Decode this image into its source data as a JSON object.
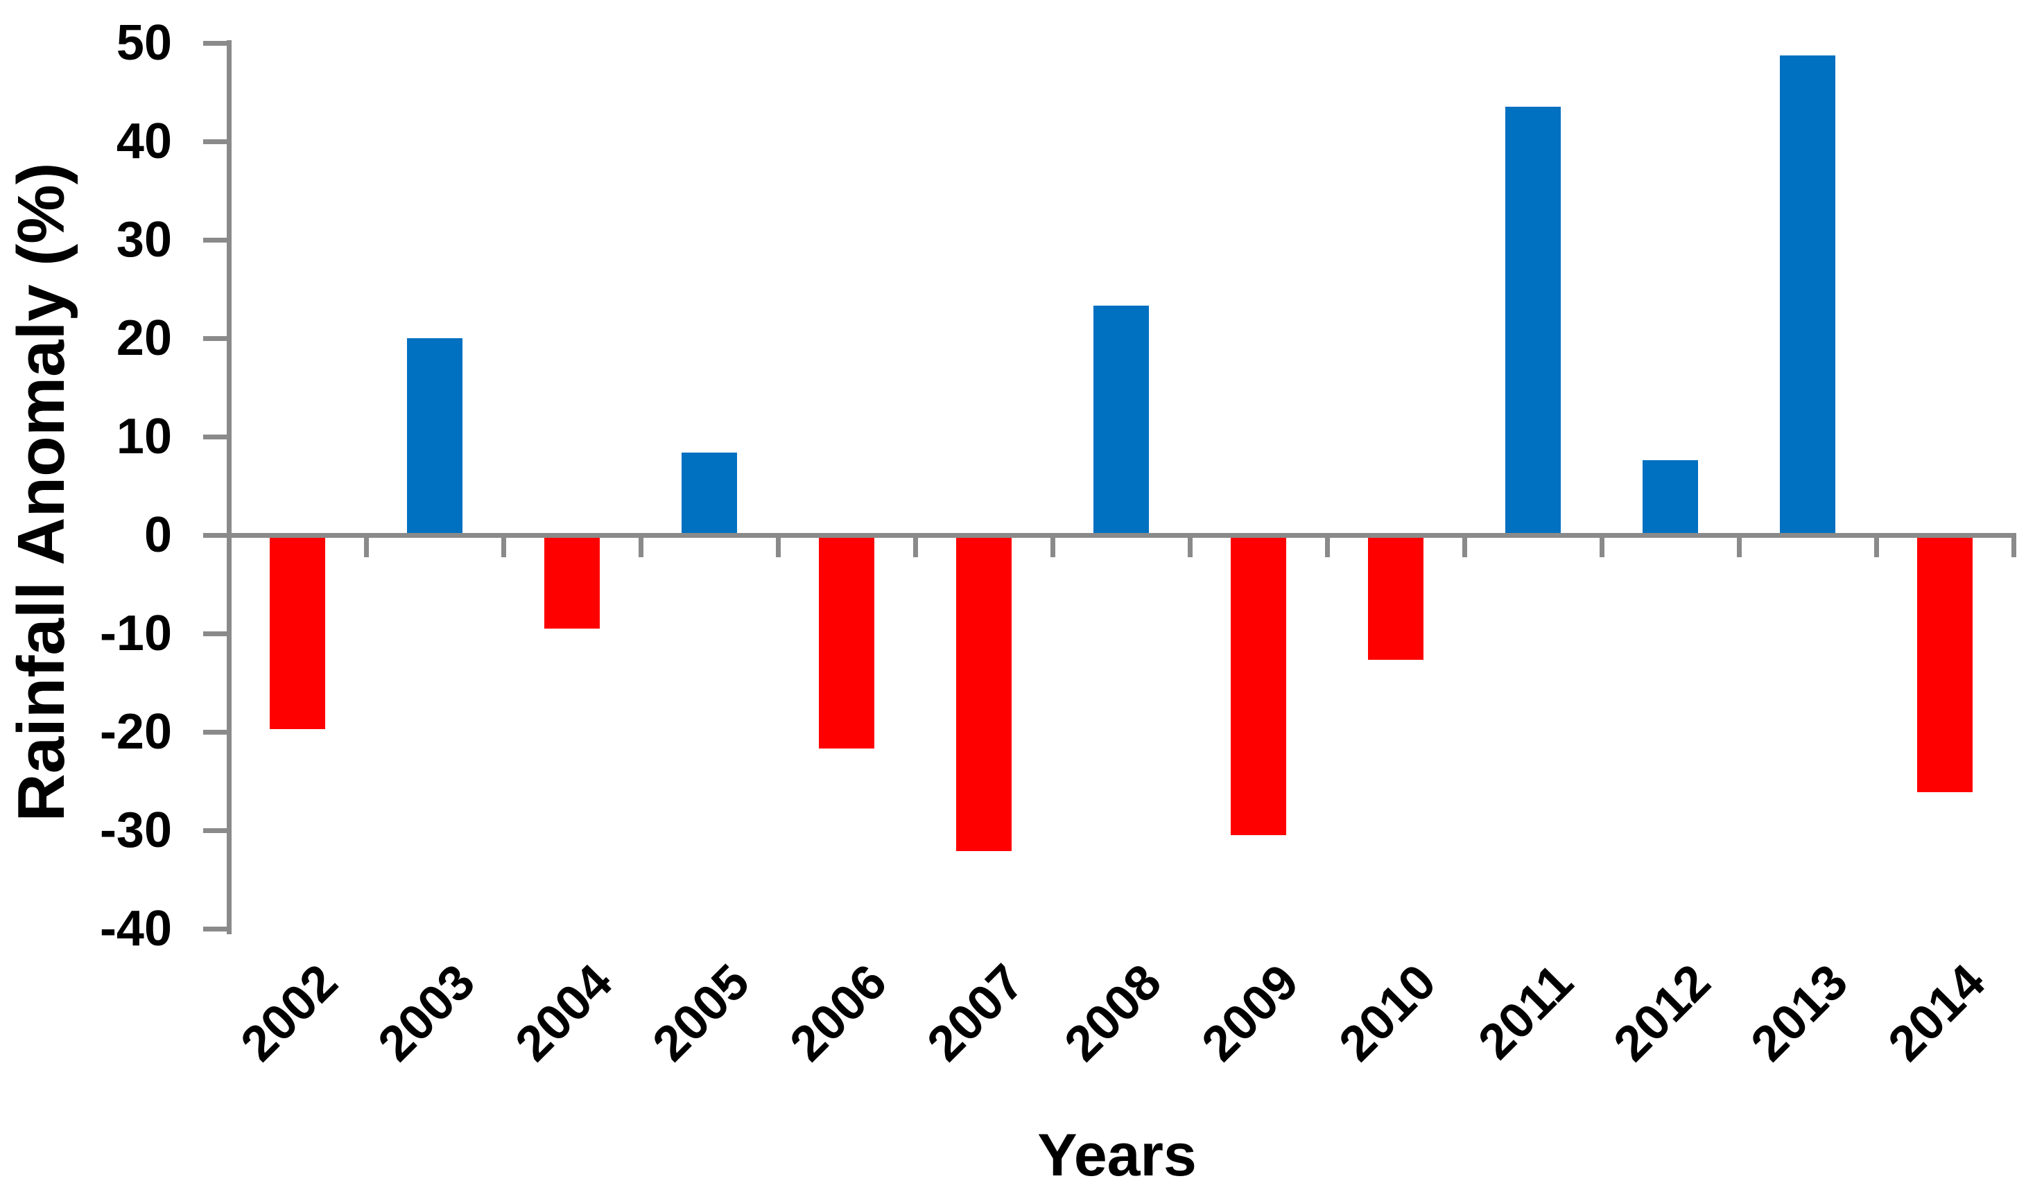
{
  "chart_data": {
    "type": "bar",
    "title": "",
    "xlabel": "Years",
    "ylabel": "Rainfall Anomaly (%)",
    "categories": [
      "2002",
      "2003",
      "2004",
      "2005",
      "2006",
      "2007",
      "2008",
      "2009",
      "2010",
      "2011",
      "2012",
      "2013",
      "2014"
    ],
    "values": [
      -19.7,
      20.0,
      -9.5,
      8.4,
      -21.7,
      -32.1,
      23.3,
      -30.5,
      -12.7,
      43.5,
      7.6,
      48.7,
      -26.1
    ],
    "yticks": [
      50,
      40,
      30,
      20,
      10,
      0,
      -10,
      -20,
      -30,
      -40
    ],
    "ylim": [
      -40,
      50
    ],
    "grid": "off",
    "legend": "none",
    "positive_color": "#0070C0",
    "negative_color": "#FF0000",
    "axis_color": "#8A8A8A",
    "text_color": "#000000"
  }
}
